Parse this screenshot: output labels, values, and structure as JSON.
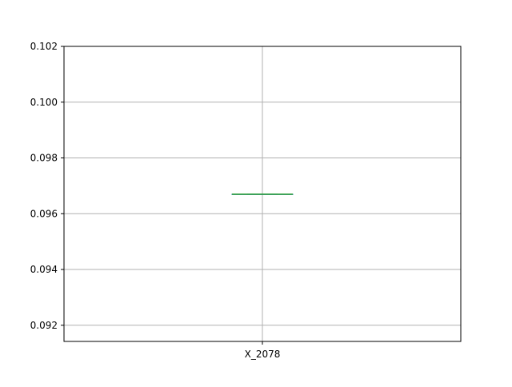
{
  "chart_data": {
    "type": "box",
    "categories": [
      "X_2078"
    ],
    "series": [
      {
        "category": "X_2078",
        "min": 0.0967,
        "q1": 0.0967,
        "median": 0.0967,
        "q3": 0.0967,
        "max": 0.0967
      }
    ],
    "ylim": [
      0.09142,
      0.102
    ],
    "yticks": [
      0.092,
      0.094,
      0.096,
      0.098,
      0.1,
      0.102
    ],
    "ytick_labels": [
      "0.092",
      "0.094",
      "0.096",
      "0.098",
      "0.100",
      "0.102"
    ],
    "grid": true,
    "colors": {
      "box": "#1f77b4",
      "median": "#2ca02c",
      "grid": "#b0b0b0",
      "axes": "#000000"
    }
  }
}
